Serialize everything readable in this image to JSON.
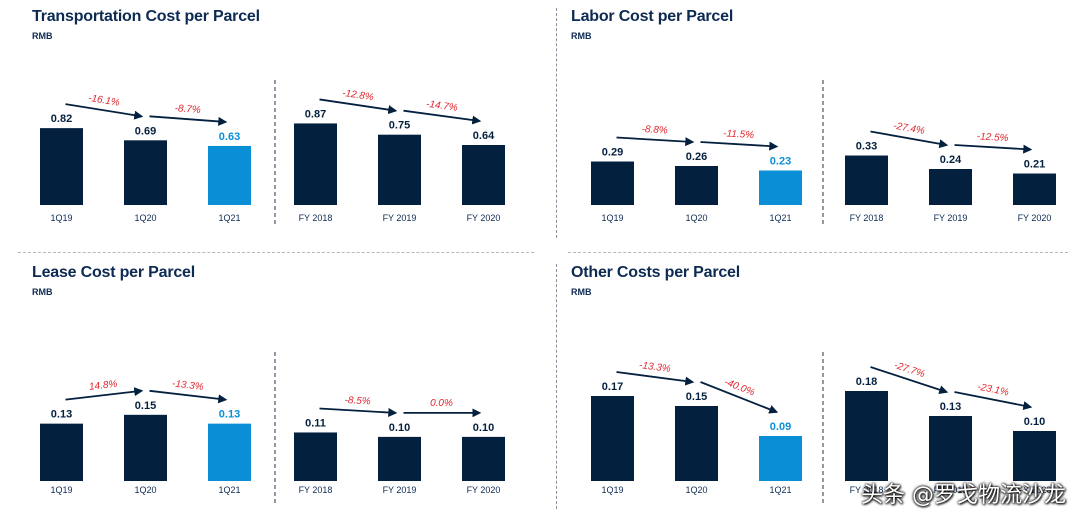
{
  "colors": {
    "dark": "#04203f",
    "highlight": "#0a8fd6",
    "change": "#e0262e",
    "label": "#0d2a52"
  },
  "panels": [
    {
      "title": "Transportation Cost per Parcel",
      "unit": "RMB",
      "chart_data": {
        "type": "bar",
        "ylim": [
          0,
          1.6
        ],
        "groups": [
          {
            "categories": [
              "1Q19",
              "1Q20",
              "1Q21"
            ],
            "values": [
              0.82,
              0.69,
              0.63
            ],
            "labels": [
              "0.82",
              "0.69",
              "0.63"
            ],
            "changes": [
              "-16.1%",
              "-8.7%"
            ],
            "highlight": [
              false,
              false,
              true
            ]
          },
          {
            "categories": [
              "FY 2018",
              "FY 2019",
              "FY 2020"
            ],
            "values": [
              0.87,
              0.75,
              0.64
            ],
            "labels": [
              "0.87",
              "0.75",
              "0.64"
            ],
            "changes": [
              "-12.8%",
              "-14.7%"
            ],
            "highlight": [
              false,
              false,
              false
            ]
          }
        ]
      }
    },
    {
      "title": "Labor Cost per Parcel",
      "unit": "RMB",
      "chart_data": {
        "type": "bar",
        "ylim": [
          0,
          1.0
        ],
        "groups": [
          {
            "categories": [
              "1Q19",
              "1Q20",
              "1Q21"
            ],
            "values": [
              0.29,
              0.26,
              0.23
            ],
            "labels": [
              "0.29",
              "0.26",
              "0.23"
            ],
            "changes": [
              "-8.8%",
              "-11.5%"
            ],
            "highlight": [
              false,
              false,
              true
            ]
          },
          {
            "categories": [
              "FY 2018",
              "FY 2019",
              "FY 2020"
            ],
            "values": [
              0.33,
              0.24,
              0.21
            ],
            "labels": [
              "0.33",
              "0.24",
              "0.21"
            ],
            "changes": [
              "-27.4%",
              "-12.5%"
            ],
            "highlight": [
              false,
              false,
              false
            ]
          }
        ]
      }
    },
    {
      "title": "Lease Cost per Parcel",
      "unit": "RMB",
      "chart_data": {
        "type": "bar",
        "ylim": [
          0,
          0.34
        ],
        "groups": [
          {
            "categories": [
              "1Q19",
              "1Q20",
              "1Q21"
            ],
            "values": [
              0.13,
              0.15,
              0.13
            ],
            "labels": [
              "0.13",
              "0.15",
              "0.13"
            ],
            "changes": [
              "14.8%",
              "-13.3%"
            ],
            "highlight": [
              false,
              false,
              true
            ]
          },
          {
            "categories": [
              "FY 2018",
              "FY 2019",
              "FY 2020"
            ],
            "values": [
              0.11,
              0.1,
              0.1
            ],
            "labels": [
              "0.11",
              "0.10",
              "0.10"
            ],
            "changes": [
              "-8.5%",
              "0.0%"
            ],
            "highlight": [
              false,
              false,
              false
            ]
          }
        ]
      }
    },
    {
      "title": "Other Costs per Parcel",
      "unit": "RMB",
      "chart_data": {
        "type": "bar",
        "ylim": [
          0,
          0.3
        ],
        "groups": [
          {
            "categories": [
              "1Q19",
              "1Q20",
              "1Q21"
            ],
            "values": [
              0.17,
              0.15,
              0.09
            ],
            "labels": [
              "0.17",
              "0.15",
              "0.09"
            ],
            "changes": [
              "-13.3%",
              "-40.0%"
            ],
            "highlight": [
              false,
              false,
              true
            ]
          },
          {
            "categories": [
              "FY 2018",
              "FY 2019",
              "FY 2020"
            ],
            "values": [
              0.18,
              0.13,
              0.1
            ],
            "labels": [
              "0.18",
              "0.13",
              "0.10"
            ],
            "changes": [
              "-27.7%",
              "-23.1%"
            ],
            "highlight": [
              false,
              false,
              false
            ]
          }
        ]
      }
    }
  ],
  "watermark": "头条 @罗戈物流沙龙"
}
